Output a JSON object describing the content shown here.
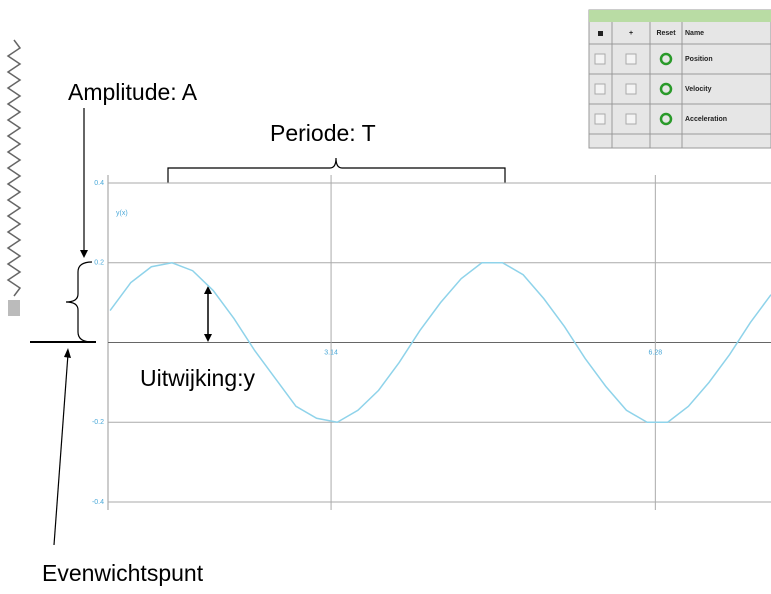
{
  "chart_data": {
    "type": "line",
    "y_label": "y(x)",
    "x": [
      1.0,
      1.2,
      1.4,
      1.6,
      1.8,
      2.0,
      2.2,
      2.4,
      2.6,
      2.8,
      3.0,
      3.2,
      3.4,
      3.6,
      3.8,
      4.0,
      4.2,
      4.4,
      4.6,
      4.8,
      5.0,
      5.2,
      5.4,
      5.6,
      5.8,
      6.0,
      6.2,
      6.4,
      6.6,
      6.8,
      7.0,
      7.2,
      7.4
    ],
    "values": [
      0.08,
      0.15,
      0.19,
      0.2,
      0.18,
      0.13,
      0.06,
      -0.02,
      -0.09,
      -0.16,
      -0.19,
      -0.2,
      -0.17,
      -0.12,
      -0.05,
      0.03,
      0.1,
      0.16,
      0.2,
      0.2,
      0.17,
      0.11,
      0.04,
      -0.04,
      -0.11,
      -0.17,
      -0.2,
      -0.2,
      -0.16,
      -0.1,
      -0.03,
      0.05,
      0.12
    ],
    "color": "#8fd3ea",
    "xlim": [
      0.98,
      7.4
    ],
    "xticks": [
      3.14,
      6.28
    ],
    "ylim": [
      -0.42,
      0.42
    ],
    "yticks": [
      -0.4,
      -0.2,
      0.2,
      0.4
    ],
    "grid": true
  },
  "annotations": {
    "amplitude": "Amplitude: A",
    "period": "Periode: T",
    "displacement": "Uitwijking:y",
    "equilibrium": "Evenwichtspunt"
  },
  "table": {
    "headers": [
      "+",
      "Reset",
      "Name"
    ],
    "rows": [
      "Position",
      "Velocity",
      "Acceleration"
    ]
  }
}
